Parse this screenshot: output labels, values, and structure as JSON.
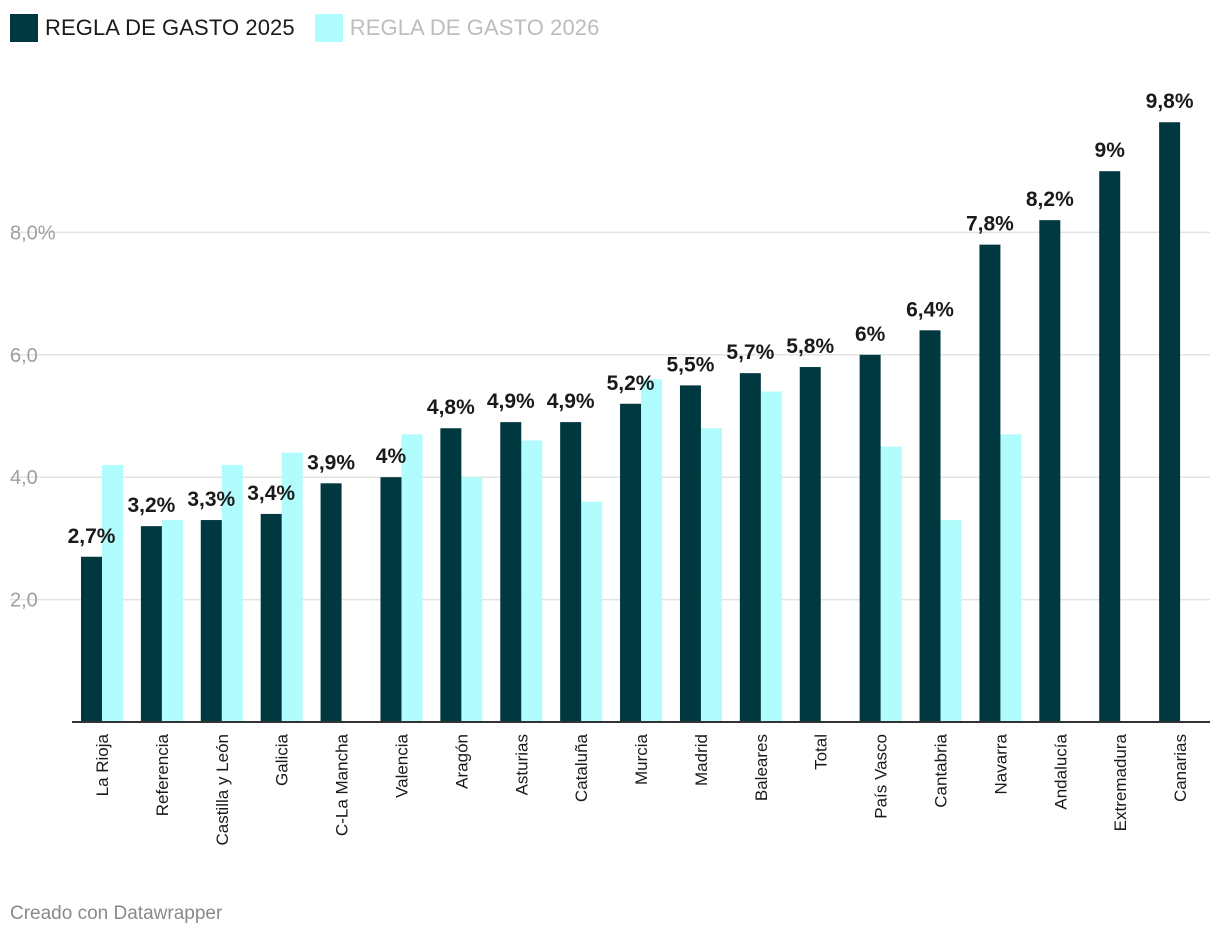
{
  "chart_data": {
    "type": "bar",
    "title": "",
    "xlabel": "",
    "ylabel": "",
    "ylim": [
      0,
      10.2
    ],
    "yticks": [
      2,
      4,
      6,
      8
    ],
    "ytick_labels": [
      "2,0",
      "4,0",
      "6,0",
      "8,0%"
    ],
    "grid": true,
    "legend_position": "top-left",
    "categories": [
      "La Rioja",
      "Referencia",
      "Castilla y León",
      "Galicia",
      "C-La Mancha",
      "Valencia",
      "Aragón",
      "Asturias",
      "Cataluña",
      "Murcia",
      "Madrid",
      "Baleares",
      "Total",
      "País Vasco",
      "Cantabria",
      "Navarra",
      "Andalucía",
      "Extremadura",
      "Canarias"
    ],
    "series": [
      {
        "name": "REGLA DE GASTO 2025",
        "color": "#003840",
        "values": [
          2.7,
          3.2,
          3.3,
          3.4,
          3.9,
          4.0,
          4.8,
          4.9,
          4.9,
          5.2,
          5.5,
          5.7,
          5.8,
          6.0,
          6.4,
          7.8,
          8.2,
          9.0,
          9.8
        ],
        "labels": [
          "2,7%",
          "3,2%",
          "3,3%",
          "3,4%",
          "3,9%",
          "4%",
          "4,8%",
          "4,9%",
          "4,9%",
          "5,2%",
          "5,5%",
          "5,7%",
          "5,8%",
          "6%",
          "6,4%",
          "7,8%",
          "8,2%",
          "9%",
          "9,8%"
        ]
      },
      {
        "name": "REGLA DE GASTO 2026",
        "color": "#b1fcfc",
        "values": [
          4.2,
          3.3,
          4.2,
          4.4,
          null,
          4.7,
          4.0,
          4.6,
          3.6,
          5.6,
          4.8,
          5.4,
          null,
          4.5,
          3.3,
          4.7,
          null,
          null,
          null
        ]
      }
    ]
  },
  "legend": {
    "items": [
      {
        "label": "REGLA DE GASTO 2025",
        "color": "#003840"
      },
      {
        "label": "REGLA DE GASTO 2026",
        "color": "#b1fcfc"
      }
    ]
  },
  "footer": {
    "credit": "Creado con Datawrapper"
  },
  "colors": {
    "axis": "#333333",
    "grid": "#e3e3e3",
    "tick_text": "#a0a0a0",
    "label_text": "#1a1a1a"
  }
}
